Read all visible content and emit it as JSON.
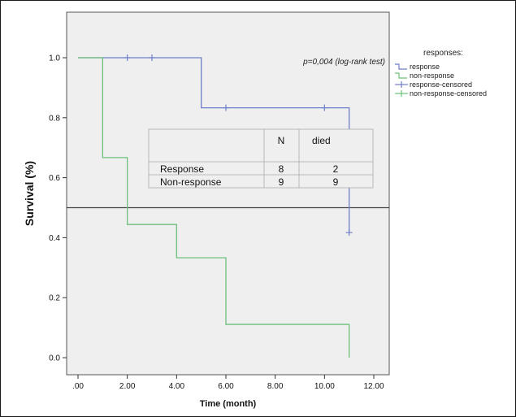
{
  "chart_data": {
    "type": "line",
    "step": true,
    "xlabel": "Time (month)",
    "ylabel": "Survival (%)",
    "xlim": [
      0,
      12
    ],
    "ylim": [
      0,
      1.0
    ],
    "x_ticks": [
      {
        "value": 0,
        "label": ".00"
      },
      {
        "value": 2,
        "label": "2.00"
      },
      {
        "value": 4,
        "label": "4.00"
      },
      {
        "value": 6,
        "label": "6.00"
      },
      {
        "value": 8,
        "label": "8.00"
      },
      {
        "value": 10,
        "label": "10.00"
      },
      {
        "value": 12,
        "label": "12.00"
      }
    ],
    "y_ticks": [
      {
        "value": 0.0,
        "label": "0.0"
      },
      {
        "value": 0.2,
        "label": "0.2"
      },
      {
        "value": 0.4,
        "label": "0.4"
      },
      {
        "value": 0.6,
        "label": "0.6"
      },
      {
        "value": 0.8,
        "label": "0.8"
      },
      {
        "value": 1.0,
        "label": "1.0"
      }
    ],
    "grid": false,
    "reference_line_y": 0.5,
    "annotation": "p=0,004 (log-rank test)",
    "legend": {
      "title": "responses:",
      "placement": "right",
      "entries": [
        "response",
        "non-response",
        "response-censored",
        "non-response-censored"
      ]
    },
    "series": [
      {
        "name": "response",
        "color": "#6f7fc9",
        "x": [
          0,
          5,
          11,
          11
        ],
        "y": [
          1.0,
          0.833,
          0.417,
          0.417
        ],
        "censored": [
          {
            "x": 2,
            "y": 1.0
          },
          {
            "x": 3,
            "y": 1.0
          },
          {
            "x": 6,
            "y": 0.833
          },
          {
            "x": 10,
            "y": 0.833
          },
          {
            "x": 11,
            "y": 0.417
          }
        ]
      },
      {
        "name": "non-response",
        "color": "#6cc07a",
        "x": [
          0,
          1,
          2,
          4,
          6,
          11,
          11
        ],
        "y": [
          1.0,
          0.667,
          0.444,
          0.333,
          0.111,
          0.111,
          0.0
        ],
        "censored": []
      }
    ],
    "table": {
      "headers": [
        "",
        "N",
        "died"
      ],
      "rows": [
        [
          "Response",
          "8",
          "2"
        ],
        [
          "Non-response",
          "9",
          "9"
        ]
      ]
    }
  },
  "colors": {
    "plot_background": "#efefef",
    "response": "#6f7fc9",
    "non_response": "#6cc07a"
  }
}
